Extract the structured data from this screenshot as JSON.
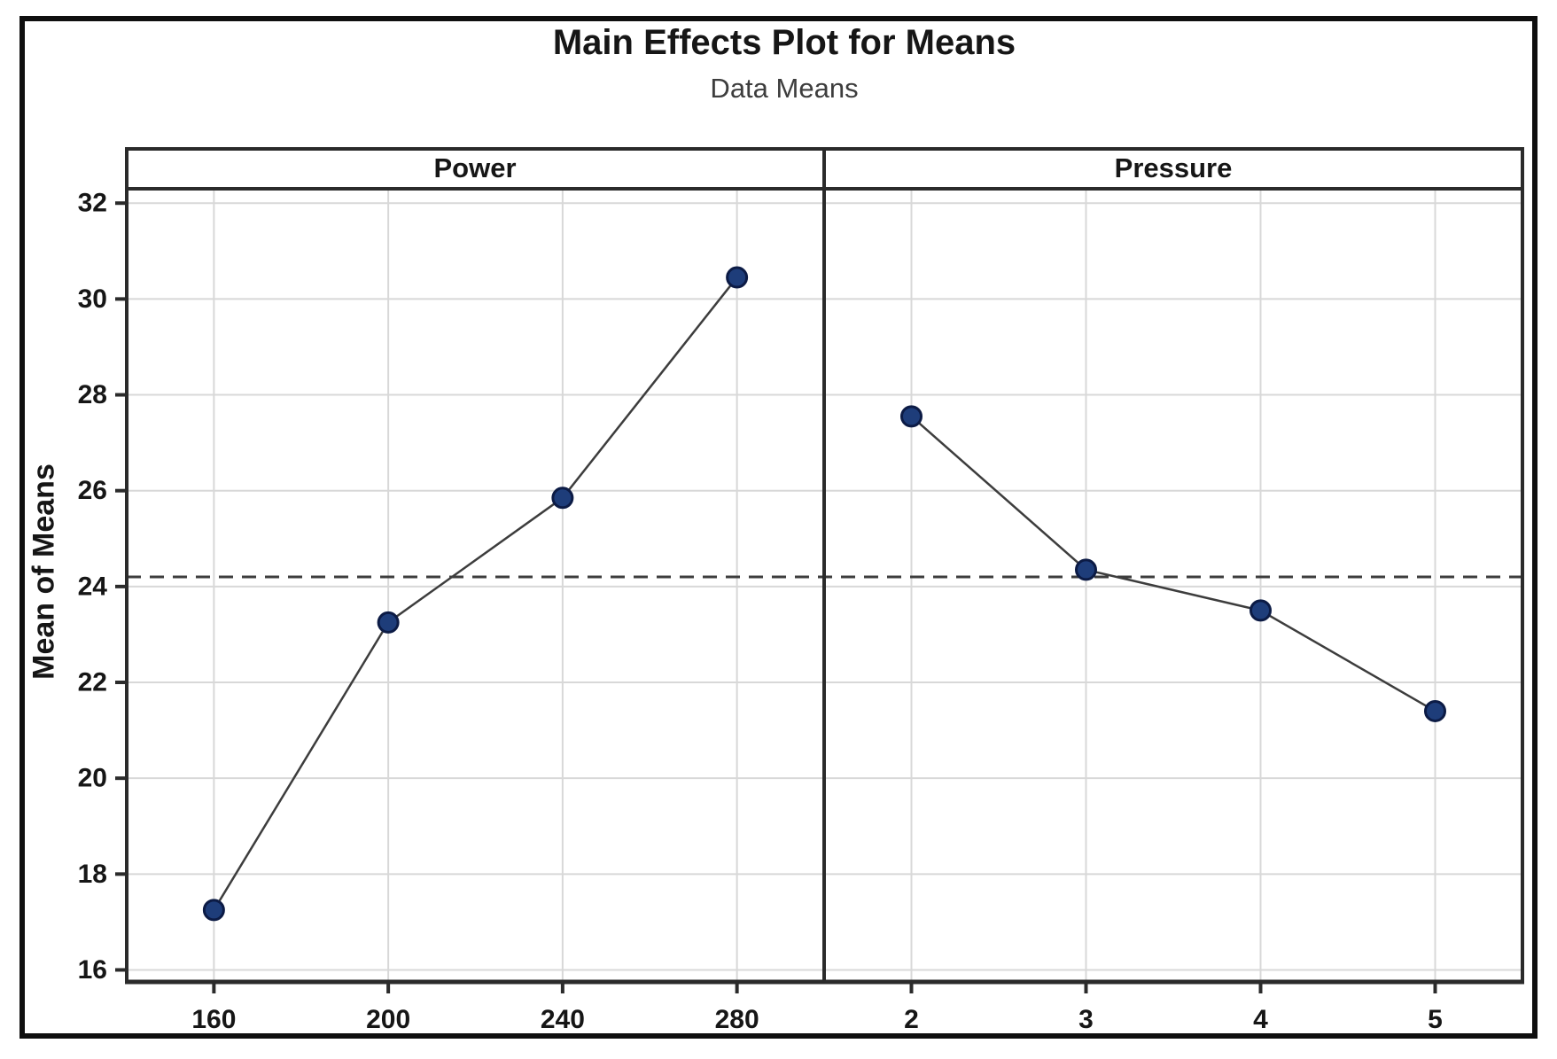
{
  "chart_data": {
    "type": "line",
    "title": "Main Effects Plot for Means",
    "subtitle": "Data Means",
    "ylabel": "Mean of Means",
    "xlabel": "",
    "y_ticks": [
      16,
      18,
      20,
      22,
      24,
      26,
      28,
      30,
      32
    ],
    "ylim": [
      15.75,
      32.3
    ],
    "grid": true,
    "legend": "none",
    "overall_mean_line": {
      "value": 24.2,
      "style": "dashed"
    },
    "panels": [
      {
        "label": "Power",
        "categories": [
          "160",
          "200",
          "240",
          "280"
        ],
        "values": [
          17.25,
          23.25,
          25.85,
          30.45
        ]
      },
      {
        "label": "Pressure",
        "categories": [
          "2",
          "3",
          "4",
          "5"
        ],
        "values": [
          27.55,
          24.35,
          23.5,
          21.4
        ]
      }
    ],
    "colors": {
      "point_fill": "#1e3d7a",
      "point_edge": "#0c1b45",
      "series_line": "#3d3d3d",
      "dashed_line": "#3d3d3d",
      "gridline": "#d8d8d8",
      "axis": "#2b2b2b",
      "strip_background": "#ffffff"
    }
  }
}
